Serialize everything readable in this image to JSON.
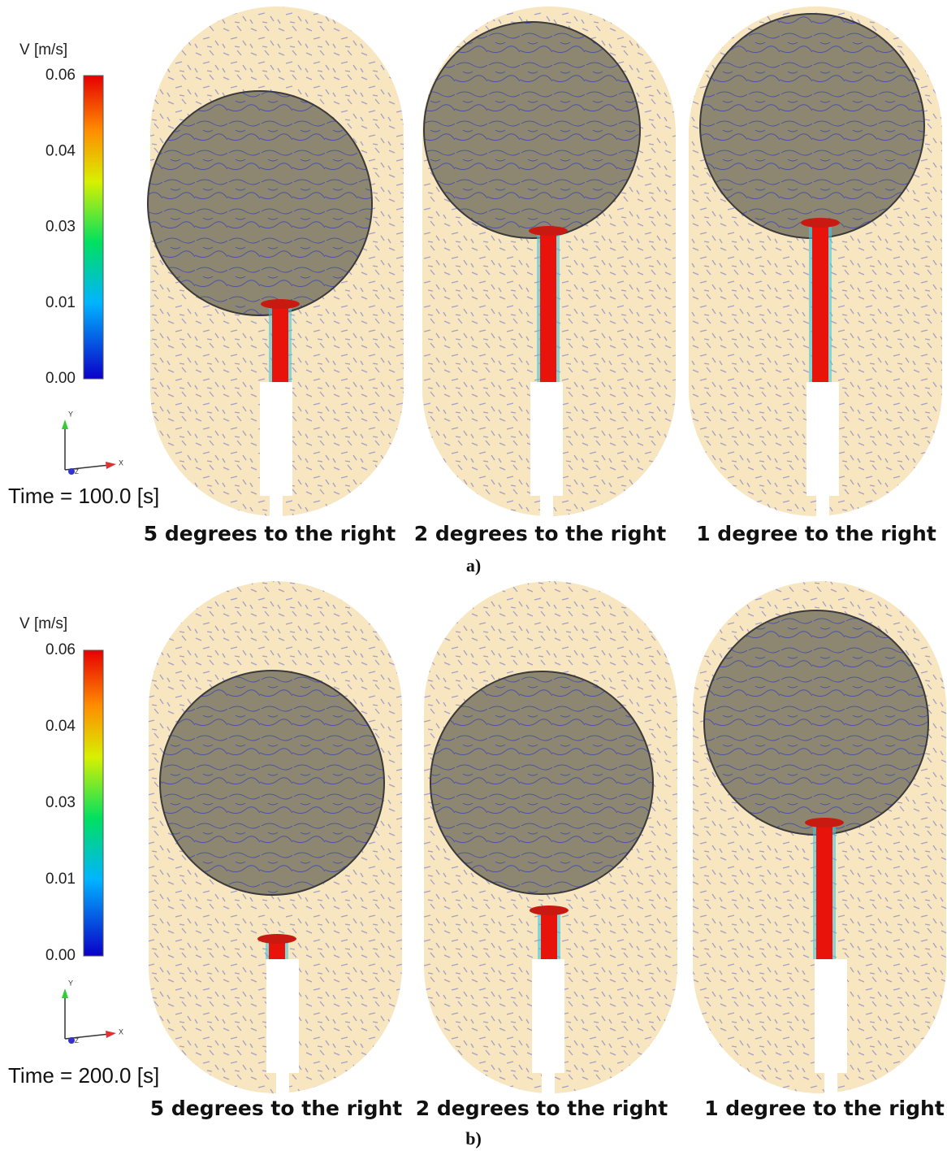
{
  "panels": [
    {
      "label": "a)",
      "legend_title": "V [m/s]",
      "colorbar_ticks": [
        "0.06",
        "0.04",
        "0.03",
        "0.01",
        "0.00"
      ],
      "axis_labels": {
        "y": "Y",
        "x": "X",
        "z": "Z"
      },
      "time": "Time = 100.0 [s]",
      "captions": [
        "5 degrees to the right",
        "2 degrees to the right",
        "1 degree to the right"
      ]
    },
    {
      "label": "b)",
      "legend_title": "V [m/s]",
      "colorbar_ticks": [
        "0.06",
        "0.04",
        "0.03",
        "0.01",
        "0.00"
      ],
      "axis_labels": {
        "y": "Y",
        "x": "X",
        "z": "Z"
      },
      "time": "Time = 200.0 [s]",
      "captions": [
        "5 degrees to the right",
        "2 degrees to the right",
        "1 degree to the right"
      ]
    }
  ]
}
